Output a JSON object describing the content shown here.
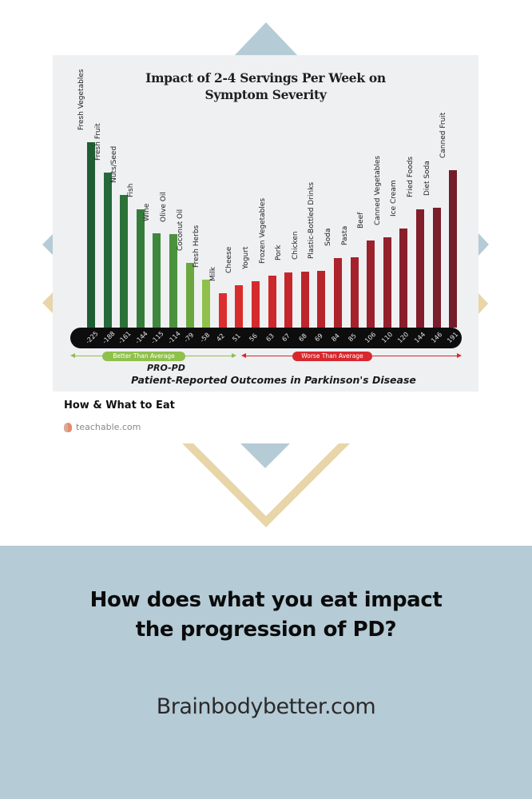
{
  "decor": {
    "blue": "#b5cbd6",
    "gold": "#e8d5a8"
  },
  "chart_data": {
    "type": "bar",
    "title": "Impact of 2-4 Servings Per Week on Symptom Severity",
    "title_lines": [
      "Impact of 2-4 Servings Per Week on",
      "Symptom Severity"
    ],
    "xlabel": "",
    "ylabel": "",
    "categories": [
      "Fresh Vegetables",
      "Fresh Fruit",
      "Nuts/Seed",
      "Fish",
      "Wine",
      "Olive Oil",
      "Coconut Oil",
      "Fresh Herbs",
      "Milk",
      "Cheese",
      "Yogurt",
      "Frozen Vegetables",
      "Pork",
      "Chicken",
      "Plastic-Bottled Drinks",
      "Soda",
      "Pasta",
      "Beef",
      "Canned Vegetables",
      "Ice Cream",
      "Fried Foods",
      "Diet Soda",
      "Canned Fruit"
    ],
    "values": [
      -225,
      -188,
      -161,
      -144,
      -115,
      -114,
      -79,
      -58,
      42,
      51,
      56,
      63,
      67,
      68,
      69,
      84,
      85,
      106,
      110,
      120,
      144,
      146,
      191
    ],
    "value_labels": [
      "-225",
      "-188",
      "-161",
      "-144",
      "-115",
      "-114",
      "-79",
      "-58",
      "42",
      "51",
      "56",
      "63",
      "67",
      "68",
      "69",
      "84",
      "85",
      "106",
      "110",
      "120",
      "144",
      "146",
      "191"
    ],
    "colors": [
      "#1f5e32",
      "#25693a",
      "#2c7238",
      "#357c3a",
      "#3f873c",
      "#4c923e",
      "#6aa83f",
      "#8fc04b",
      "#dc2e2e",
      "#d92c2c",
      "#d42a2c",
      "#cd282c",
      "#c4262c",
      "#bd252c",
      "#b6242c",
      "#ac232c",
      "#a5222c",
      "#9b212c",
      "#93202c",
      "#8a1f2c",
      "#821e2c",
      "#7a1d2c",
      "#741c2b"
    ],
    "ranges": [
      {
        "label": "Better Than Average",
        "color": "#8fc04b"
      },
      {
        "label": "Worse Than Average",
        "color": "#d7282e"
      }
    ],
    "footer_lines": [
      "PRO-PD",
      "Patient-Reported Outcomes in Parkinson's Disease"
    ],
    "ylim": [
      -225,
      191
    ],
    "grid": false,
    "legend": "none"
  },
  "caption": {
    "title": "How & What to Eat",
    "source": "teachable.com",
    "source_icon": "brain-icon"
  },
  "banner": {
    "headline_lines": [
      "How does what you eat impact",
      "the progression of PD?"
    ],
    "site": "Brainbodybetter.com"
  }
}
